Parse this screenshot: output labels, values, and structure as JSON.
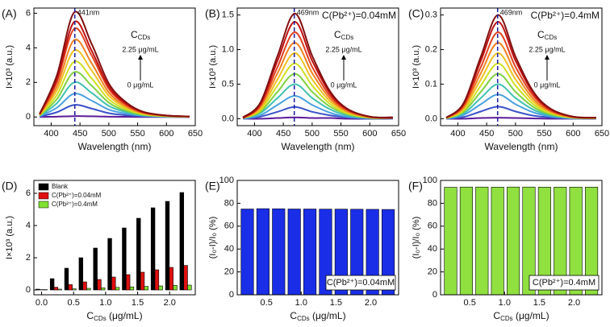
{
  "chart_data": [
    {
      "type": "line",
      "panel": "(A)",
      "x_label": "Wavelength (nm)",
      "y_label": "I×10³ (a.u.)",
      "xlim": [
        370,
        650
      ],
      "xticks": [
        400,
        450,
        500,
        550,
        600,
        650
      ],
      "ylim": [
        -0.5,
        6.3
      ],
      "yticks": [
        0,
        2,
        4,
        6
      ],
      "peak_line": 441,
      "peak_label": "441nm",
      "concentration_label": {
        "main": "C",
        "sub": "CDs"
      },
      "high_label": "2.25 μg/mL",
      "low_label": "0 μg/mL",
      "x": [
        380,
        410,
        440,
        470,
        500,
        530,
        560,
        600,
        640
      ],
      "series": [
        {
          "color": "#5a1a9a",
          "values": [
            0,
            0.02,
            0.05,
            0.04,
            0.02,
            0.01,
            0,
            0,
            0
          ]
        },
        {
          "color": "#3a52c8",
          "values": [
            0.02,
            0.28,
            0.7,
            0.49,
            0.22,
            0.1,
            0.04,
            0.01,
            0
          ]
        },
        {
          "color": "#4aa0e0",
          "values": [
            0.04,
            0.54,
            1.35,
            0.95,
            0.43,
            0.19,
            0.07,
            0.02,
            0.01
          ]
        },
        {
          "color": "#40c0b0",
          "values": [
            0.06,
            0.8,
            2.0,
            1.4,
            0.64,
            0.28,
            0.1,
            0.03,
            0.01
          ]
        },
        {
          "color": "#80d040",
          "values": [
            0.08,
            1.04,
            2.6,
            1.82,
            0.83,
            0.36,
            0.13,
            0.04,
            0.01
          ]
        },
        {
          "color": "#d0e020",
          "values": [
            0.1,
            1.28,
            3.2,
            2.24,
            1.02,
            0.45,
            0.16,
            0.05,
            0.02
          ]
        },
        {
          "color": "#f0c020",
          "values": [
            0.12,
            1.54,
            3.85,
            2.7,
            1.23,
            0.54,
            0.19,
            0.06,
            0.02
          ]
        },
        {
          "color": "#f08020",
          "values": [
            0.13,
            1.78,
            4.45,
            3.12,
            1.42,
            0.62,
            0.22,
            0.07,
            0.02
          ]
        },
        {
          "color": "#e04020",
          "values": [
            0.15,
            2.04,
            5.1,
            3.57,
            1.63,
            0.71,
            0.26,
            0.08,
            0.03
          ]
        },
        {
          "color": "#c01010",
          "values": [
            0.17,
            2.2,
            5.5,
            3.85,
            1.76,
            0.77,
            0.28,
            0.08,
            0.03
          ]
        },
        {
          "color": "#801010",
          "values": [
            0.18,
            2.42,
            6.05,
            4.24,
            1.94,
            0.85,
            0.3,
            0.09,
            0.03
          ]
        }
      ]
    },
    {
      "type": "line",
      "panel": "(B)",
      "x_label": "Wavelength (nm)",
      "y_label": "I×10³ (a.u.)",
      "xlim": [
        370,
        650
      ],
      "xticks": [
        400,
        450,
        500,
        550,
        600,
        650
      ],
      "ylim": [
        -0.1,
        1.6
      ],
      "yticks": [
        {
          "value": 0,
          "label": "0.0"
        },
        0.5,
        {
          "value": 1,
          "label": "1.0"
        },
        1.5
      ],
      "peak_line": 469,
      "peak_label": "469nm",
      "condition": "C(Pb²⁺)=0.04mM",
      "concentration_label": {
        "main": "C",
        "sub": "CDs"
      },
      "high_label": "2.25 μg/mL",
      "low_label": "0 μg/mL",
      "x": [
        380,
        410,
        440,
        470,
        500,
        530,
        560,
        600,
        640
      ],
      "series": [
        {
          "color": "#5a1a9a",
          "values": [
            0,
            0,
            0.01,
            0.02,
            0.01,
            0.01,
            0,
            0,
            0
          ]
        },
        {
          "color": "#3a52c8",
          "values": [
            0,
            0.03,
            0.1,
            0.17,
            0.1,
            0.05,
            0.02,
            0,
            0
          ]
        },
        {
          "color": "#4aa0e0",
          "values": [
            0,
            0.05,
            0.2,
            0.33,
            0.2,
            0.09,
            0.03,
            0.01,
            0
          ]
        },
        {
          "color": "#40c0b0",
          "values": [
            0.01,
            0.08,
            0.3,
            0.5,
            0.3,
            0.14,
            0.05,
            0.01,
            0.01
          ]
        },
        {
          "color": "#80d040",
          "values": [
            0.01,
            0.1,
            0.39,
            0.65,
            0.39,
            0.18,
            0.07,
            0.01,
            0.01
          ]
        },
        {
          "color": "#d0e020",
          "values": [
            0.01,
            0.12,
            0.48,
            0.8,
            0.48,
            0.22,
            0.08,
            0.02,
            0.01
          ]
        },
        {
          "color": "#f0c020",
          "values": [
            0.01,
            0.14,
            0.57,
            0.95,
            0.57,
            0.26,
            0.1,
            0.02,
            0.01
          ]
        },
        {
          "color": "#f08020",
          "values": [
            0.01,
            0.17,
            0.66,
            1.1,
            0.66,
            0.3,
            0.11,
            0.02,
            0.01
          ]
        },
        {
          "color": "#e04020",
          "values": [
            0.01,
            0.19,
            0.75,
            1.25,
            0.75,
            0.34,
            0.13,
            0.03,
            0.01
          ]
        },
        {
          "color": "#c01010",
          "values": [
            0.01,
            0.21,
            0.84,
            1.4,
            0.84,
            0.38,
            0.14,
            0.03,
            0.01
          ]
        },
        {
          "color": "#801010",
          "values": [
            0.02,
            0.23,
            0.91,
            1.52,
            0.91,
            0.41,
            0.15,
            0.03,
            0.02
          ]
        }
      ]
    },
    {
      "type": "line",
      "panel": "(C)",
      "x_label": "Wavelength (nm)",
      "y_label": "I×10³ (a.u.)",
      "xlim": [
        370,
        650
      ],
      "xticks": [
        400,
        450,
        500,
        550,
        600,
        650
      ],
      "ylim": [
        -0.02,
        0.32
      ],
      "yticks": [
        {
          "value": 0,
          "label": "0.0"
        },
        0.1,
        0.2,
        0.3
      ],
      "peak_line": 469,
      "peak_label": "469nm",
      "condition": "C(Pb²⁺)=0.4mM",
      "concentration_label": {
        "main": "C",
        "sub": "CDs"
      },
      "high_label": "2.25 μg/mL",
      "low_label": "0 μg/mL",
      "x": [
        380,
        410,
        440,
        470,
        500,
        530,
        560,
        600,
        640
      ],
      "series": [
        {
          "color": "#5a1a9a",
          "values": [
            0,
            0,
            0.002,
            0.003,
            0.002,
            0.001,
            0,
            0,
            0
          ]
        },
        {
          "color": "#3a52c8",
          "values": [
            0,
            0.005,
            0.021,
            0.035,
            0.021,
            0.009,
            0.004,
            0.001,
            0
          ]
        },
        {
          "color": "#4aa0e0",
          "values": [
            0.001,
            0.011,
            0.042,
            0.07,
            0.042,
            0.019,
            0.007,
            0.001,
            0.001
          ]
        },
        {
          "color": "#40c0b0",
          "values": [
            0.001,
            0.015,
            0.06,
            0.1,
            0.06,
            0.027,
            0.01,
            0.002,
            0.001
          ]
        },
        {
          "color": "#80d040",
          "values": [
            0.001,
            0.02,
            0.078,
            0.13,
            0.078,
            0.035,
            0.013,
            0.003,
            0.001
          ]
        },
        {
          "color": "#d0e020",
          "values": [
            0.002,
            0.024,
            0.096,
            0.16,
            0.096,
            0.043,
            0.016,
            0.003,
            0.002
          ]
        },
        {
          "color": "#f0c020",
          "values": [
            0.002,
            0.029,
            0.114,
            0.19,
            0.114,
            0.051,
            0.019,
            0.004,
            0.002
          ]
        },
        {
          "color": "#f08020",
          "values": [
            0.002,
            0.033,
            0.132,
            0.22,
            0.132,
            0.059,
            0.022,
            0.004,
            0.002
          ]
        },
        {
          "color": "#e04020",
          "values": [
            0.003,
            0.038,
            0.15,
            0.25,
            0.15,
            0.068,
            0.025,
            0.005,
            0.003
          ]
        },
        {
          "color": "#c01010",
          "values": [
            0.003,
            0.042,
            0.168,
            0.28,
            0.168,
            0.076,
            0.028,
            0.006,
            0.003
          ]
        },
        {
          "color": "#801010",
          "values": [
            0.003,
            0.045,
            0.18,
            0.3,
            0.18,
            0.081,
            0.03,
            0.006,
            0.003
          ]
        }
      ]
    },
    {
      "type": "bar",
      "panel": "(D)",
      "x_label": {
        "main": "C",
        "sub": "CDs",
        "rest": " (μg/mL)"
      },
      "y_label": "I×10³ (a.u.)",
      "xlim": [
        -0.12,
        2.4
      ],
      "xticks": [
        {
          "value": 0,
          "label": "0.0"
        },
        0.5,
        {
          "value": 1,
          "label": "1.0"
        },
        1.5,
        {
          "value": 2,
          "label": "2.0"
        }
      ],
      "ylim": [
        -0.3,
        6.8
      ],
      "yticks": [
        0,
        2,
        4,
        6
      ],
      "legend": "upper left",
      "x": [
        0,
        0.225,
        0.45,
        0.675,
        0.9,
        1.125,
        1.35,
        1.575,
        1.8,
        2.025,
        2.25
      ],
      "series": [
        {
          "name": "Blank",
          "color": "#000000",
          "values": [
            0.05,
            0.7,
            1.35,
            2.0,
            2.6,
            3.2,
            3.85,
            4.45,
            5.1,
            5.5,
            6.05
          ]
        },
        {
          "name": "C(Pb²⁺)=0.04mM",
          "color": "#e01010",
          "values": [
            0.02,
            0.17,
            0.33,
            0.5,
            0.65,
            0.8,
            0.95,
            1.1,
            1.25,
            1.4,
            1.52
          ]
        },
        {
          "name": "C(Pb²⁺)=0.4mM",
          "color": "#80e030",
          "values": [
            0.02,
            0.05,
            0.07,
            0.1,
            0.13,
            0.16,
            0.19,
            0.22,
            0.25,
            0.28,
            0.3
          ]
        }
      ]
    },
    {
      "type": "bar",
      "panel": "(E)",
      "x_label": {
        "main": "C",
        "sub": "CDs",
        "rest": " (μg/mL)"
      },
      "y_label": "(I₀-I)/I₀ (%)",
      "xlim": [
        0.08,
        2.4
      ],
      "xticks": [
        0.5,
        {
          "value": 1,
          "label": "1.0"
        },
        1.5,
        {
          "value": 2,
          "label": "2.0"
        }
      ],
      "ylim": [
        0,
        100
      ],
      "yticks": [
        0,
        20,
        40,
        60,
        80,
        100
      ],
      "condition": "C(Pb²⁺)=0.04mM",
      "color": "#1a2ee8",
      "x": [
        0.225,
        0.45,
        0.675,
        0.9,
        1.125,
        1.35,
        1.575,
        1.8,
        2.025,
        2.25
      ],
      "values": [
        75,
        75.3,
        75.2,
        75,
        75,
        74.9,
        74.9,
        74.8,
        74.7,
        74.6
      ]
    },
    {
      "type": "bar",
      "panel": "(F)",
      "x_label": {
        "main": "C",
        "sub": "CDs",
        "rest": " (μg/mL)"
      },
      "y_label": "(I₀-I)/I₀ (%)",
      "xlim": [
        0.08,
        2.4
      ],
      "xticks": [
        0.5,
        {
          "value": 1,
          "label": "1.0"
        },
        1.5,
        {
          "value": 2,
          "label": "2.0"
        }
      ],
      "ylim": [
        0,
        100
      ],
      "yticks": [
        0,
        20,
        40,
        60,
        80,
        100
      ],
      "condition": "C(Pb²⁺)=0.4mM",
      "color": "#90e040",
      "x": [
        0.225,
        0.45,
        0.675,
        0.9,
        1.125,
        1.35,
        1.575,
        1.8,
        2.025,
        2.25
      ],
      "values": [
        94,
        94.2,
        94.2,
        94.1,
        94.2,
        94.2,
        94.1,
        94.1,
        94.1,
        94.1
      ]
    }
  ]
}
